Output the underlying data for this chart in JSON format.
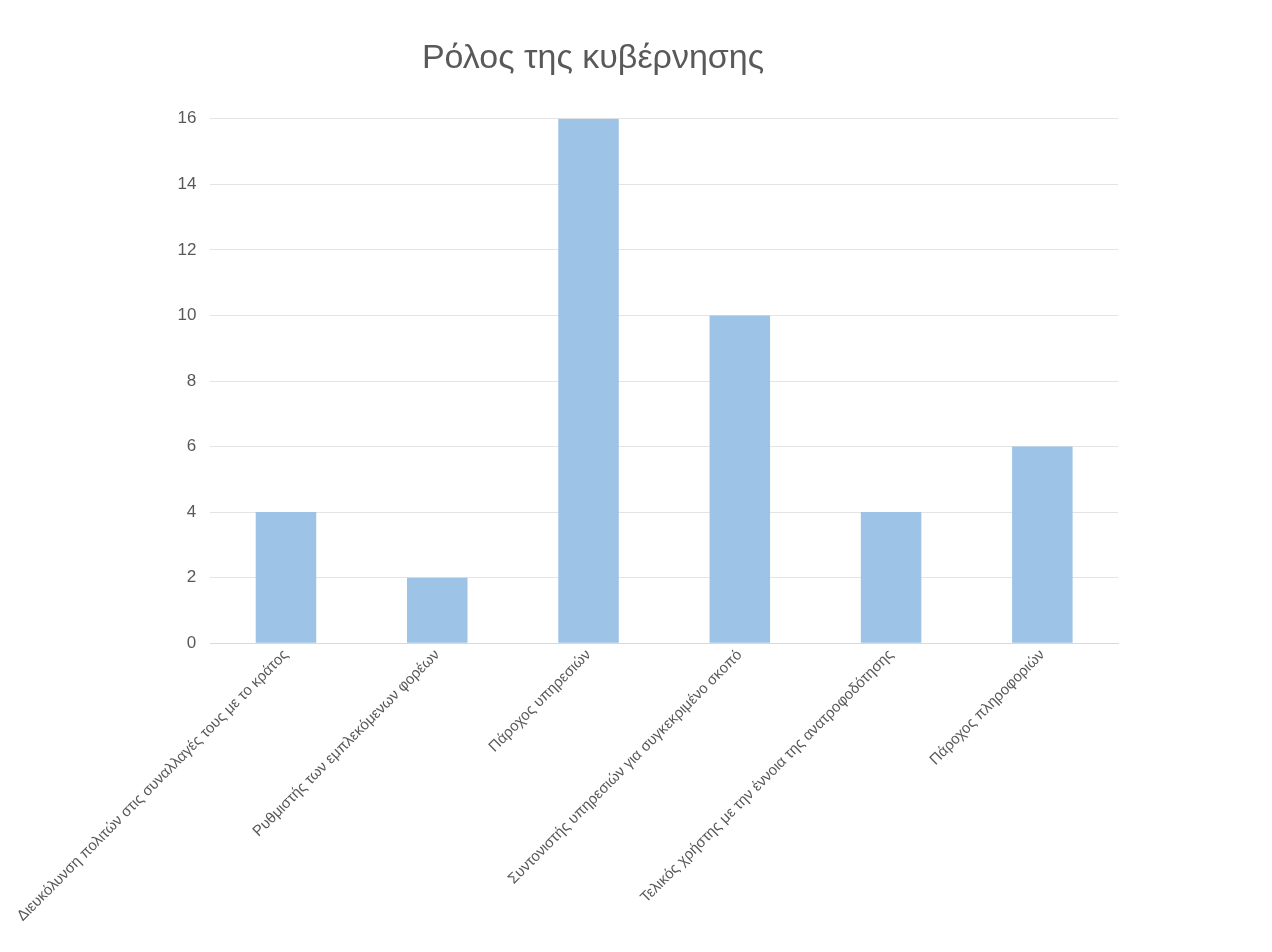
{
  "chart_data": {
    "type": "bar",
    "title": "Ρόλος της κυβέρνησης",
    "categories": [
      "Διευκόλυνση πολιτών στις συναλλαγές τους με το κράτος",
      "Ρυθμιστής των εμπλεκόμενων φορέων",
      "Πάροχος υπηρεσιών",
      "Συντονιστής υπηρεσιών για συγκεκριμένο σκοπό",
      "Τελικός χρήστης με την έννοια της ανατροφοδότησης",
      "Πάροχος πληροφοριών"
    ],
    "values": [
      4,
      2,
      16,
      10,
      4,
      6
    ],
    "color": "#9dc3e6",
    "ylim": [
      0,
      16
    ],
    "yticks": [
      0,
      2,
      4,
      6,
      8,
      10,
      12,
      14,
      16
    ],
    "grid": "y"
  }
}
